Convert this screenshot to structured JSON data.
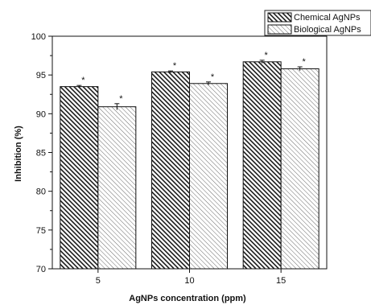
{
  "chart_data": {
    "type": "bar",
    "xlabel": "AgNPs concentration (ppm)",
    "ylabel": "Inhibition (%)",
    "categories": [
      "5",
      "10",
      "15"
    ],
    "ylim": [
      70,
      100
    ],
    "yticks": [
      "70",
      "75",
      "80",
      "85",
      "90",
      "95",
      "100"
    ],
    "series": [
      {
        "name": "Chemical AgNPs",
        "values": [
          93.5,
          95.4,
          96.7
        ],
        "errors": [
          0.15,
          0.12,
          0.2
        ],
        "color": "#1a1a1a",
        "pattern": "dark-hatch"
      },
      {
        "name": "Biological AgNPs",
        "values": [
          90.9,
          93.9,
          95.8
        ],
        "errors": [
          0.4,
          0.2,
          0.25
        ],
        "color": "#9a9a9a",
        "pattern": "light-hatch"
      }
    ],
    "annotations": [
      "*",
      "*",
      "*",
      "*",
      "*",
      "*"
    ],
    "legend_position": "top-right"
  }
}
